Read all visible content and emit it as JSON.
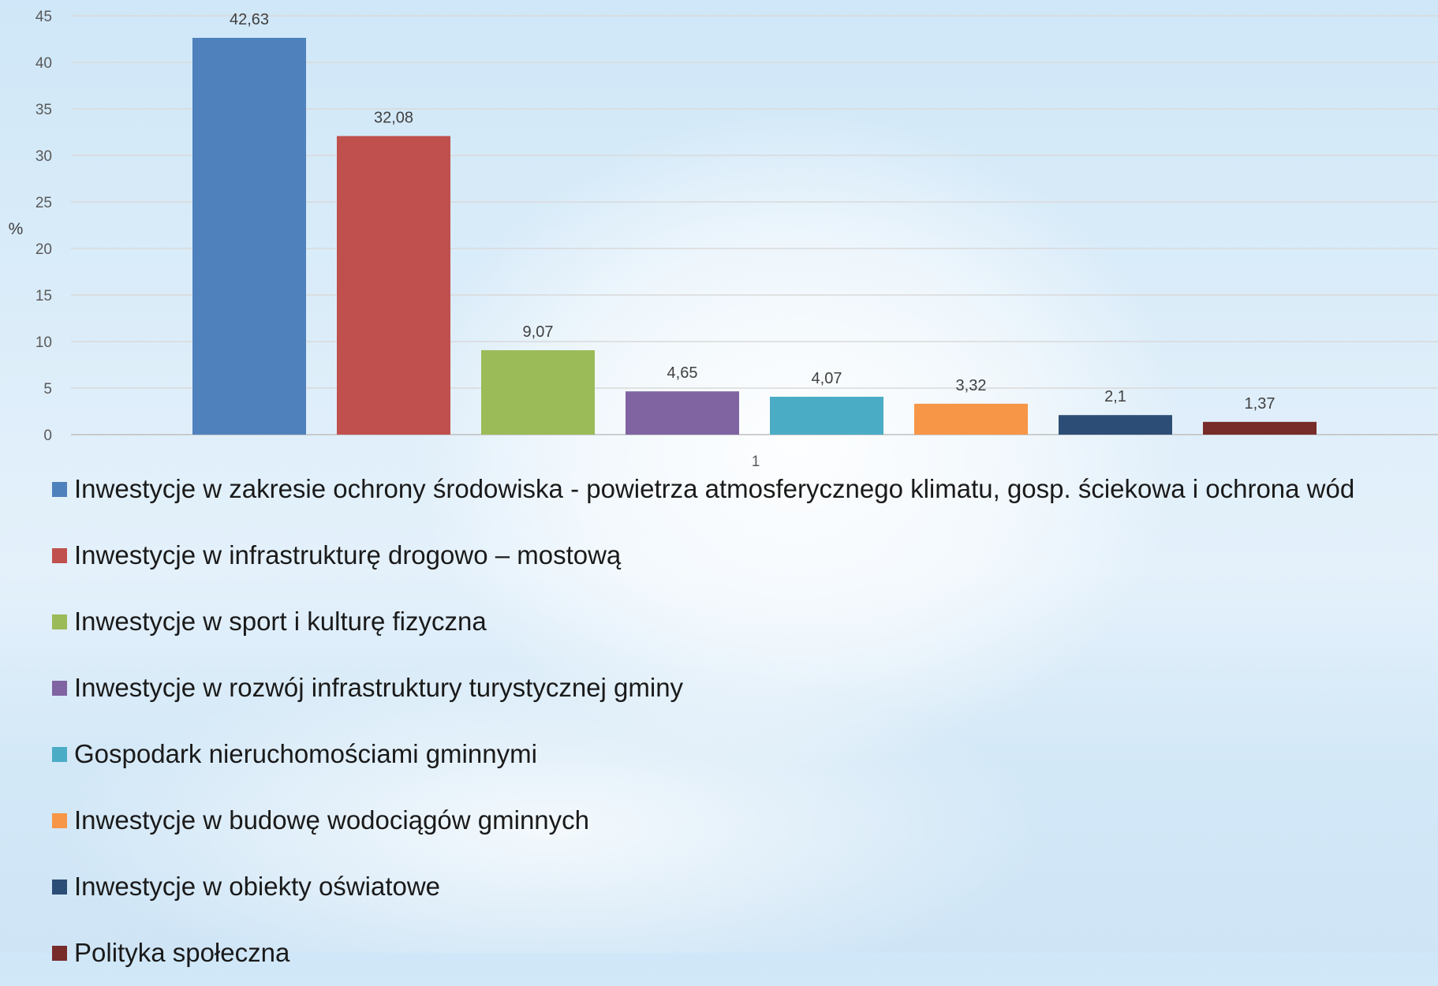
{
  "chart_data": {
    "type": "bar",
    "categories": [
      "1"
    ],
    "ylabel": "%",
    "ylim": [
      0,
      45
    ],
    "yticks": [
      0,
      5,
      10,
      15,
      20,
      25,
      30,
      35,
      40,
      45
    ],
    "grid": true,
    "legend_position": "bottom",
    "series": [
      {
        "name": "Inwestycje w zakresie ochrony środowiska - powietrza atmosferycznego klimatu, gosp. ściekowa i ochrona wód",
        "value": 42.63,
        "label": "42,63",
        "color": "#4f81bd"
      },
      {
        "name": "Inwestycje w infrastrukturę drogowo – mostową",
        "value": 32.08,
        "label": "32,08",
        "color": "#c0504d"
      },
      {
        "name": "Inwestycje w sport i kulturę fizyczna",
        "value": 9.07,
        "label": "9,07",
        "color": "#9bbb59"
      },
      {
        "name": "Inwestycje w rozwój infrastruktury turystycznej  gminy",
        "value": 4.65,
        "label": "4,65",
        "color": "#8064a2"
      },
      {
        "name": "Gospodark nieruchomościami gminnymi",
        "value": 4.07,
        "label": "4,07",
        "color": "#4bacc6"
      },
      {
        "name": "Inwestycje w budowę wodociągów gminnych",
        "value": 3.32,
        "label": "3,32",
        "color": "#f79646"
      },
      {
        "name": "Inwestycje w obiekty oświatowe",
        "value": 2.1,
        "label": "2,1",
        "color": "#2c4d75"
      },
      {
        "name": "Polityka społeczna",
        "value": 1.37,
        "label": "1,37",
        "color": "#772c2a"
      }
    ]
  }
}
